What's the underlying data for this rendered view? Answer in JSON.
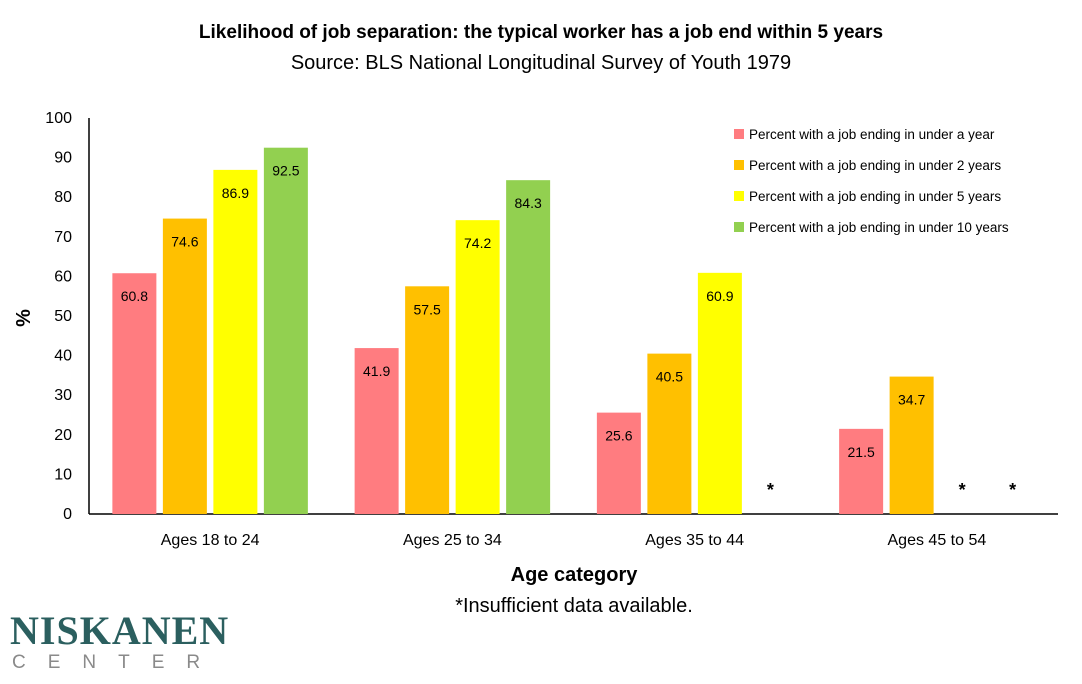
{
  "chart_data": {
    "type": "bar",
    "title": "Likelihood of job separation: the typical worker has a job end within 5 years",
    "subtitle": "Source: BLS National Longitudinal Survey of Youth 1979",
    "xlabel": "Age category",
    "ylabel": "%",
    "ylim": [
      0,
      100
    ],
    "yticks": [
      "0",
      "10",
      "20",
      "30",
      "40",
      "50",
      "60",
      "70",
      "80",
      "90",
      "100"
    ],
    "categories": [
      "Ages 18 to 24",
      "Ages 25 to 34",
      "Ages 35 to 44",
      "Ages 45 to 54"
    ],
    "series": [
      {
        "name": "Percent with a  job ending in under a year",
        "color": "#ff7c80",
        "values": [
          60.8,
          41.9,
          25.6,
          21.5
        ],
        "labels": [
          "60.8",
          "41.9",
          "25.6",
          "21.5"
        ]
      },
      {
        "name": "Percent with a  job ending in under 2 years",
        "color": "#ffc000",
        "values": [
          74.6,
          57.5,
          40.5,
          34.7
        ],
        "labels": [
          "74.6",
          "57.5",
          "40.5",
          "34.7"
        ]
      },
      {
        "name": "Percent with a  job ending in under 5 years",
        "color": "#ffff00",
        "values": [
          86.9,
          74.2,
          60.9,
          null
        ],
        "labels": [
          "86.9",
          "74.2",
          "60.9",
          "*"
        ]
      },
      {
        "name": "Percent with a  job ending in under 10 years",
        "color": "#92d050",
        "values": [
          92.5,
          84.3,
          null,
          null
        ],
        "labels": [
          "92.5",
          "84.3",
          "*",
          "*"
        ]
      }
    ],
    "legend_position": "top-right",
    "grid": false,
    "footnote": "*Insufficient data available."
  },
  "logo": {
    "name": "NISKANEN",
    "sub": "CENTER",
    "color": "#2b5f5f",
    "sub_color": "#8a8a8a"
  }
}
